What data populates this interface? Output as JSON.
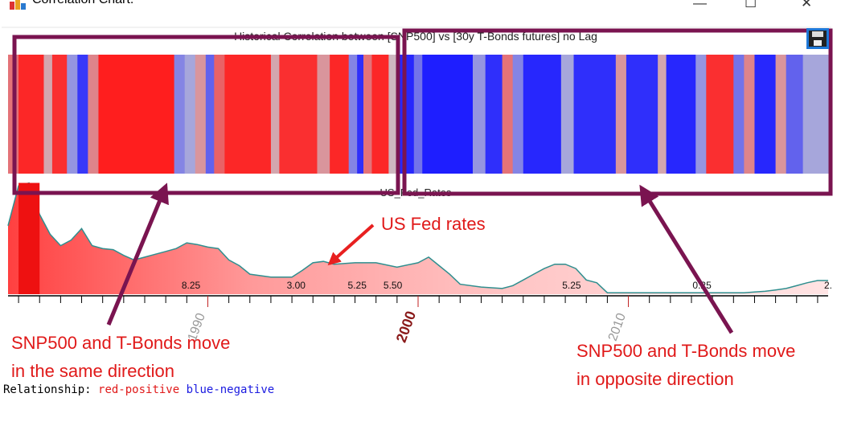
{
  "window": {
    "title": "Correlation Chart.",
    "minimize_glyph": "—",
    "maximize_glyph": "☐",
    "close_glyph": "✕",
    "app_icon": "app-logo-icon",
    "save_icon": "floppy-disk-icon"
  },
  "chart_data": [
    {
      "type": "heatmap",
      "title": "Historical Correlation between [SNP500] vs [30y T-Bonds futures] no Lag",
      "x_range": [
        1980.5,
        2019.5
      ],
      "colors": {
        "positive": "#ff1e1e",
        "neutral": "#c8c8d2",
        "negative": "#1e1eff"
      },
      "bands": [
        {
          "from": 1980.5,
          "to": 1981.0,
          "value": 0.5
        },
        {
          "from": 1981.0,
          "to": 1982.2,
          "value": 0.95
        },
        {
          "from": 1982.2,
          "to": 1982.6,
          "value": 0.2
        },
        {
          "from": 1982.6,
          "to": 1983.3,
          "value": 0.9
        },
        {
          "from": 1983.3,
          "to": 1983.8,
          "value": -0.3
        },
        {
          "from": 1983.8,
          "to": 1984.3,
          "value": -0.85
        },
        {
          "from": 1984.3,
          "to": 1984.8,
          "value": 0.4
        },
        {
          "from": 1984.8,
          "to": 1988.4,
          "value": 1.0
        },
        {
          "from": 1988.4,
          "to": 1988.9,
          "value": -0.4
        },
        {
          "from": 1988.9,
          "to": 1989.4,
          "value": -0.2
        },
        {
          "from": 1989.4,
          "to": 1989.9,
          "value": 0.3
        },
        {
          "from": 1989.9,
          "to": 1990.3,
          "value": -0.6
        },
        {
          "from": 1990.3,
          "to": 1990.8,
          "value": 0.6
        },
        {
          "from": 1990.8,
          "to": 1993.0,
          "value": 0.95
        },
        {
          "from": 1993.0,
          "to": 1993.4,
          "value": 0.2
        },
        {
          "from": 1993.4,
          "to": 1995.2,
          "value": 0.9
        },
        {
          "from": 1995.2,
          "to": 1995.8,
          "value": 0.3
        },
        {
          "from": 1995.8,
          "to": 1996.7,
          "value": 0.95
        },
        {
          "from": 1996.7,
          "to": 1997.1,
          "value": -0.4
        },
        {
          "from": 1997.1,
          "to": 1997.4,
          "value": -0.9
        },
        {
          "from": 1997.4,
          "to": 1997.8,
          "value": 0.5
        },
        {
          "from": 1997.8,
          "to": 1998.6,
          "value": 0.95
        },
        {
          "from": 1998.6,
          "to": 1999.0,
          "value": 0.1
        },
        {
          "from": 1999.0,
          "to": 1999.8,
          "value": -0.95
        },
        {
          "from": 1999.8,
          "to": 2000.2,
          "value": -0.5
        },
        {
          "from": 2000.2,
          "to": 2002.6,
          "value": -1.0
        },
        {
          "from": 2002.6,
          "to": 2003.2,
          "value": -0.3
        },
        {
          "from": 2003.2,
          "to": 2004.0,
          "value": -0.9
        },
        {
          "from": 2004.0,
          "to": 2004.5,
          "value": 0.5
        },
        {
          "from": 2004.5,
          "to": 2005.0,
          "value": -0.4
        },
        {
          "from": 2005.0,
          "to": 2006.8,
          "value": -0.95
        },
        {
          "from": 2006.8,
          "to": 2007.4,
          "value": -0.2
        },
        {
          "from": 2007.4,
          "to": 2009.4,
          "value": -0.9
        },
        {
          "from": 2009.4,
          "to": 2009.9,
          "value": 0.3
        },
        {
          "from": 2009.9,
          "to": 2011.4,
          "value": -0.9
        },
        {
          "from": 2011.4,
          "to": 2011.8,
          "value": 0.2
        },
        {
          "from": 2011.8,
          "to": 2013.2,
          "value": -0.95
        },
        {
          "from": 2013.2,
          "to": 2013.7,
          "value": -0.3
        },
        {
          "from": 2013.7,
          "to": 2015.0,
          "value": 0.9
        },
        {
          "from": 2015.0,
          "to": 2015.5,
          "value": -0.5
        },
        {
          "from": 2015.5,
          "to": 2016.0,
          "value": 0.4
        },
        {
          "from": 2016.0,
          "to": 2017.0,
          "value": -0.95
        },
        {
          "from": 2017.0,
          "to": 2017.5,
          "value": 0.3
        },
        {
          "from": 2017.5,
          "to": 2018.3,
          "value": -0.6
        },
        {
          "from": 2018.3,
          "to": 2019.5,
          "value": -0.2
        }
      ]
    },
    {
      "type": "area",
      "title": "US_Fed_Rates",
      "x_range": [
        1980.5,
        2019.5
      ],
      "ylim": [
        0,
        20
      ],
      "series": [
        {
          "x": [
            1980.5,
            1981.0,
            1981.5,
            1982.0,
            1982.5,
            1983.0,
            1983.5,
            1984.0,
            1984.5,
            1985.0,
            1985.5,
            1986.0,
            1986.5,
            1987.0,
            1987.5,
            1988.0,
            1988.5,
            1989.0,
            1989.5,
            1990.0,
            1990.5,
            1991.0,
            1991.5,
            1992.0,
            1993.0,
            1994.0,
            1994.5,
            1995.0,
            1995.5,
            1996.0,
            1997.0,
            1998.0,
            1999.0,
            2000.0,
            2000.5,
            2001.0,
            2001.5,
            2002.0,
            2003.0,
            2004.0,
            2004.5,
            2005.0,
            2005.5,
            2006.0,
            2006.5,
            2007.0,
            2007.5,
            2008.0,
            2008.5,
            2009.0,
            2010.0,
            2015.0,
            2015.5,
            2016.0,
            2016.5,
            2017.0,
            2017.5,
            2018.0,
            2018.5,
            2019.0,
            2019.5
          ],
          "y": [
            12.0,
            19.0,
            19.5,
            14.0,
            10.5,
            8.5,
            9.5,
            11.5,
            8.5,
            8.0,
            7.8,
            6.8,
            6.0,
            6.5,
            7.0,
            7.5,
            8.0,
            9.0,
            8.7,
            8.25,
            8.0,
            6.0,
            5.0,
            3.5,
            3.0,
            3.0,
            4.2,
            5.5,
            5.75,
            5.25,
            5.5,
            5.5,
            4.75,
            5.5,
            6.5,
            5.0,
            3.5,
            1.75,
            1.25,
            1.0,
            1.5,
            2.5,
            3.5,
            4.5,
            5.25,
            5.25,
            4.5,
            2.5,
            2.0,
            0.25,
            0.25,
            0.25,
            0.25,
            0.4,
            0.5,
            0.75,
            1.0,
            1.5,
            2.0,
            2.4,
            2.4
          ]
        }
      ],
      "value_labels": [
        {
          "x": 1989.2,
          "text": "8.25"
        },
        {
          "x": 1994.2,
          "text": "3.00"
        },
        {
          "x": 1997.1,
          "text": "5.25"
        },
        {
          "x": 1998.8,
          "text": "5.50"
        },
        {
          "x": 2007.3,
          "text": "5.25"
        },
        {
          "x": 2013.5,
          "text": "0.25"
        },
        {
          "x": 2019.5,
          "text": "2."
        }
      ],
      "x_ticks": [
        1990,
        2000,
        2010
      ],
      "x_tick_labels": [
        "1990",
        "2000",
        "2010"
      ],
      "minor_tick_step": 1
    }
  ],
  "annotations": {
    "fed_label": "US Fed rates",
    "left_note_line1": "SNP500 and T-Bonds move",
    "left_note_line2": "in the same direction",
    "right_note_line1": "SNP500 and T-Bonds move",
    "right_note_line2": "in opposite direction",
    "highlight_color": "#7a1450",
    "note_color": "#e01919"
  },
  "legend": {
    "prefix": "Relationship: ",
    "positive": "red-positive",
    "negative": "blue-negative"
  }
}
